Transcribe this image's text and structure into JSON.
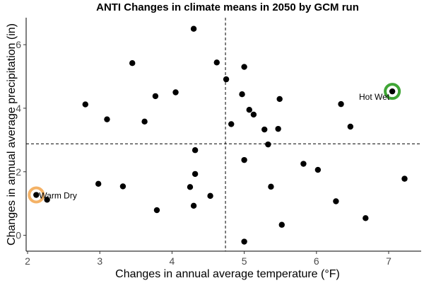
{
  "chart_data": {
    "type": "scatter",
    "title": "ANTI Changes in climate means in 2050 by GCM run",
    "xlabel": "Changes in annual average temperature (°F)",
    "ylabel": "Changes in annual average precipitation (in)",
    "xlim": [
      1.98,
      7.45
    ],
    "ylim": [
      -0.5,
      6.85
    ],
    "xticks": [
      2,
      3,
      4,
      5,
      6,
      7
    ],
    "yticks": [
      0,
      2,
      4,
      6
    ],
    "grid": false,
    "reference_lines": {
      "x": 4.74,
      "y": 2.88
    },
    "point_color": "#000000",
    "points": [
      {
        "x": 2.12,
        "y": 1.27
      },
      {
        "x": 2.27,
        "y": 1.12
      },
      {
        "x": 2.8,
        "y": 4.12
      },
      {
        "x": 2.98,
        "y": 1.62
      },
      {
        "x": 3.1,
        "y": 3.65
      },
      {
        "x": 3.32,
        "y": 1.54
      },
      {
        "x": 3.45,
        "y": 5.42
      },
      {
        "x": 3.62,
        "y": 3.58
      },
      {
        "x": 3.77,
        "y": 4.38
      },
      {
        "x": 3.79,
        "y": 0.79
      },
      {
        "x": 4.05,
        "y": 4.5
      },
      {
        "x": 4.25,
        "y": 1.52
      },
      {
        "x": 4.3,
        "y": 0.93
      },
      {
        "x": 4.3,
        "y": 6.5
      },
      {
        "x": 4.32,
        "y": 2.68
      },
      {
        "x": 4.32,
        "y": 1.93
      },
      {
        "x": 4.53,
        "y": 1.24
      },
      {
        "x": 4.62,
        "y": 5.44
      },
      {
        "x": 4.75,
        "y": 4.91
      },
      {
        "x": 4.82,
        "y": 3.5
      },
      {
        "x": 4.97,
        "y": 4.44
      },
      {
        "x": 5.0,
        "y": 5.3
      },
      {
        "x": 5.0,
        "y": 2.37
      },
      {
        "x": 5.0,
        "y": -0.2
      },
      {
        "x": 5.07,
        "y": 3.95
      },
      {
        "x": 5.13,
        "y": 3.8
      },
      {
        "x": 5.28,
        "y": 3.33
      },
      {
        "x": 5.33,
        "y": 2.86
      },
      {
        "x": 5.37,
        "y": 1.53
      },
      {
        "x": 5.47,
        "y": 3.35
      },
      {
        "x": 5.49,
        "y": 4.29
      },
      {
        "x": 5.52,
        "y": 0.33
      },
      {
        "x": 5.82,
        "y": 2.25
      },
      {
        "x": 6.02,
        "y": 2.06
      },
      {
        "x": 6.27,
        "y": 1.07
      },
      {
        "x": 6.34,
        "y": 4.13
      },
      {
        "x": 6.47,
        "y": 3.42
      },
      {
        "x": 6.68,
        "y": 0.54
      },
      {
        "x": 7.05,
        "y": 4.53
      },
      {
        "x": 7.22,
        "y": 1.78
      }
    ],
    "highlights": [
      {
        "label": "Warm Dry",
        "x": 2.12,
        "y": 1.27,
        "color": "#f4b266",
        "label_side": "right"
      },
      {
        "label": "Hot Wet",
        "x": 7.05,
        "y": 4.53,
        "color": "#3fa535",
        "label_side": "left"
      }
    ]
  }
}
